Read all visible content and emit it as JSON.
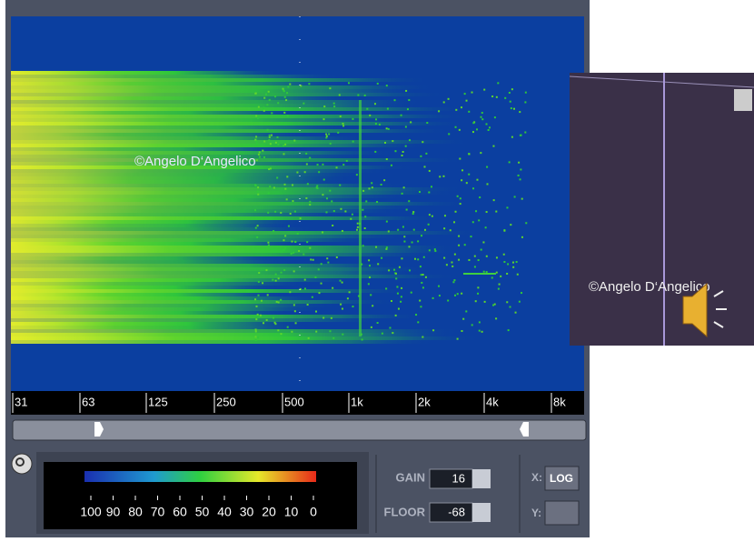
{
  "spectrogram": {
    "watermark": "©Angelo D‘Angelico",
    "freq_labels": [
      "31",
      "63",
      "125",
      "250",
      "500",
      "1k",
      "2k",
      "4k",
      "8k"
    ]
  },
  "inset": {
    "watermark": "©Angelo D‘Angelico"
  },
  "colorbar": {
    "labels": [
      "100",
      "90",
      "80",
      "70",
      "60",
      "50",
      "40",
      "30",
      "20",
      "10",
      "0"
    ]
  },
  "controls": {
    "gain": {
      "label": "GAIN",
      "value": "16"
    },
    "floor": {
      "label": "FLOOR",
      "value": "-68"
    },
    "x": {
      "label": "X:",
      "value": "LOG"
    },
    "y": {
      "label": "Y:"
    }
  }
}
